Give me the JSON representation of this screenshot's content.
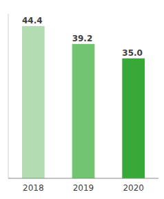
{
  "chart_data": {
    "type": "bar",
    "categories": [
      "2018",
      "2019",
      "2020"
    ],
    "values": [
      44.4,
      39.2,
      35.0
    ],
    "value_labels": [
      "44.4",
      "39.2",
      "35.0"
    ],
    "colors": [
      "#b2ddb2",
      "#72c472",
      "#38a838"
    ],
    "ylim": [
      0,
      48
    ],
    "data_labels": true,
    "tick_labels": "x",
    "grid": false
  }
}
